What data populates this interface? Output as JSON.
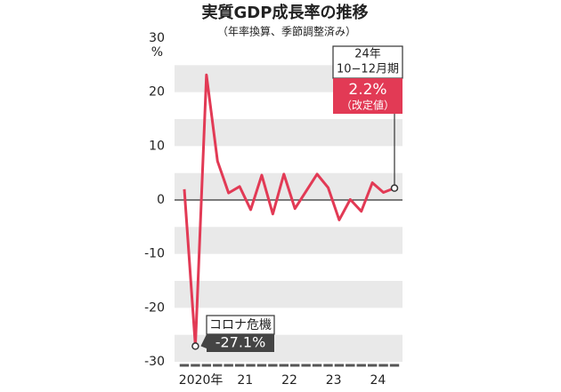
{
  "chart_data": {
    "type": "line",
    "title": "実質GDP成長率の推移",
    "subtitle": "（年率換算、季節調整済み）",
    "y_unit": "%",
    "categories": [
      "2020年",
      null,
      null,
      null,
      "21",
      null,
      null,
      null,
      "22",
      null,
      null,
      null,
      "23",
      null,
      null,
      null,
      "24",
      null,
      null,
      null
    ],
    "series": [
      {
        "name": "実質GDP成長率",
        "color": "#e23a55",
        "values": [
          2.0,
          -27.1,
          23.2,
          7.2,
          1.3,
          2.5,
          -1.8,
          4.6,
          -2.6,
          4.8,
          -1.6,
          1.6,
          4.8,
          2.3,
          -3.7,
          0.1,
          -2.1,
          3.2,
          1.4,
          2.2
        ],
        "value_labels": [
          null,
          "-27.1%",
          null,
          null,
          null,
          null,
          null,
          null,
          null,
          null,
          null,
          null,
          null,
          null,
          null,
          null,
          null,
          null,
          null,
          "2.2%"
        ]
      }
    ],
    "annotations": {
      "covid": "コロナ危機",
      "period_year": "24年",
      "period_quarter": "10−12月期",
      "revised": "（改定値）"
    },
    "ylim": [
      -30,
      30
    ],
    "yticks": [
      -30,
      -20,
      -10,
      0,
      10,
      20,
      30
    ],
    "grid": true
  }
}
